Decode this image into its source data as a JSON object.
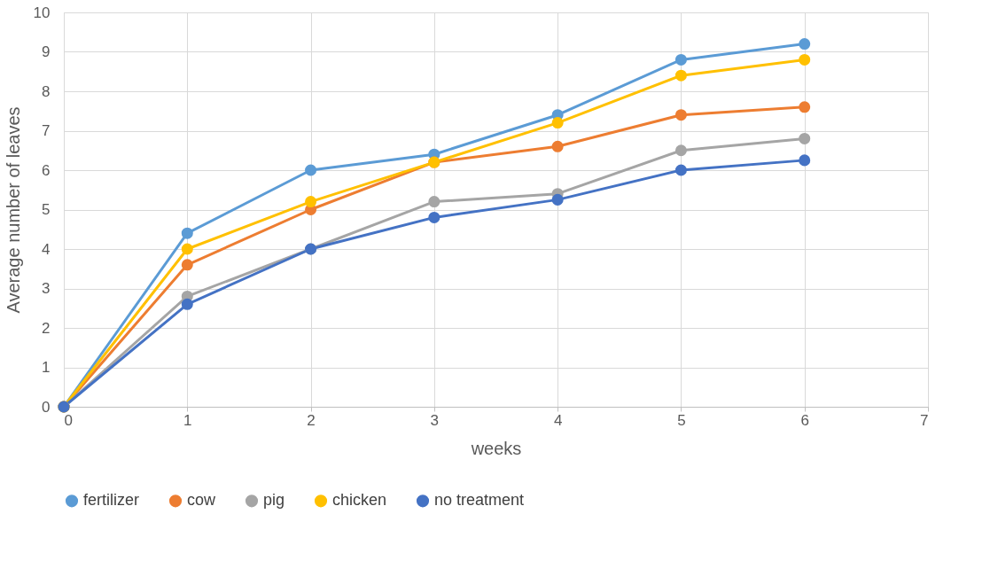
{
  "chart_data": {
    "type": "line",
    "xlabel": "weeks",
    "ylabel": "Average number of leaves",
    "x": [
      0,
      1,
      2,
      3,
      4,
      5,
      6
    ],
    "xlim": [
      0,
      7
    ],
    "xticks": [
      0,
      1,
      2,
      3,
      4,
      5,
      6,
      7
    ],
    "ylim": [
      0,
      10
    ],
    "yticks": [
      0,
      1,
      2,
      3,
      4,
      5,
      6,
      7,
      8,
      9,
      10
    ],
    "grid": true,
    "legend": "bottom",
    "marker": "circle",
    "line_style": "solid",
    "series": [
      {
        "name": "fertilizer",
        "color": "#5b9bd5",
        "values": [
          0,
          4.4,
          6.0,
          6.4,
          7.4,
          8.8,
          9.2
        ]
      },
      {
        "name": "cow",
        "color": "#ed7d31",
        "values": [
          0,
          3.6,
          5.0,
          6.2,
          6.6,
          7.4,
          7.6
        ]
      },
      {
        "name": "pig",
        "color": "#a5a5a5",
        "values": [
          0,
          2.8,
          4.0,
          5.2,
          5.4,
          6.5,
          6.8
        ]
      },
      {
        "name": "chicken",
        "color": "#ffc000",
        "values": [
          0,
          4.0,
          5.2,
          6.2,
          7.2,
          8.4,
          8.8
        ]
      },
      {
        "name": "no treatment",
        "color": "#4472c4",
        "values": [
          0,
          2.6,
          4.0,
          4.8,
          5.25,
          6.0,
          6.25
        ]
      }
    ]
  }
}
